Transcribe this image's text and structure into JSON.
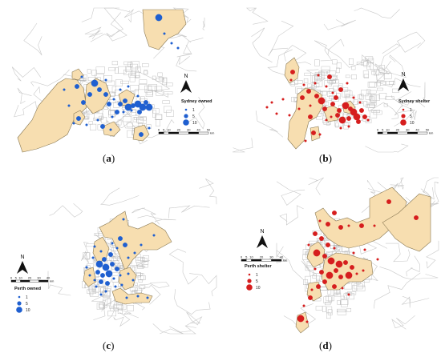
{
  "colors": {
    "region_fill": "#f7deb0",
    "region_stroke": "#8a7a55",
    "road": "#c9c9c9",
    "owned_dot": "#1f5fd0",
    "shelter_dot": "#d61e1e",
    "north_arrow": "#111111"
  },
  "panels": [
    {
      "id": "a",
      "caption_open": "(",
      "caption_letter": "a",
      "caption_close": ")",
      "legend_title": "Sydney owned",
      "legend_items": [
        "1",
        "5",
        "10"
      ],
      "dot_color": "owned",
      "north_label": "N",
      "scale_ticks": [
        "0",
        "5",
        "10",
        "20",
        "30",
        "40",
        "50"
      ],
      "scale_unit": "km"
    },
    {
      "id": "b",
      "caption_open": "(",
      "caption_letter": "b",
      "caption_close": ")",
      "legend_title": "Sydney shelter",
      "legend_items": [
        "1",
        "5",
        "10"
      ],
      "dot_color": "shelter",
      "north_label": "N",
      "scale_ticks": [
        "0",
        "5",
        "10",
        "20",
        "30",
        "40",
        "50"
      ],
      "scale_unit": "km"
    },
    {
      "id": "c",
      "caption_open": "(",
      "caption_letter": "c",
      "caption_close": ")",
      "legend_title": "Perth owned",
      "legend_items": [
        "1",
        "5",
        "10"
      ],
      "dot_color": "owned",
      "north_label": "N",
      "scale_ticks": [
        "0",
        "5",
        "10",
        "20",
        "30",
        "40"
      ],
      "scale_unit": "km"
    },
    {
      "id": "d",
      "caption_open": "(",
      "caption_letter": "d",
      "caption_close": ")",
      "legend_title": "Perth shelter",
      "legend_items": [
        "1",
        "5",
        "10"
      ],
      "dot_color": "shelter",
      "north_label": "N",
      "scale_ticks": [
        "0",
        "5",
        "10",
        "20",
        "30",
        "40"
      ],
      "scale_unit": "km"
    }
  ]
}
